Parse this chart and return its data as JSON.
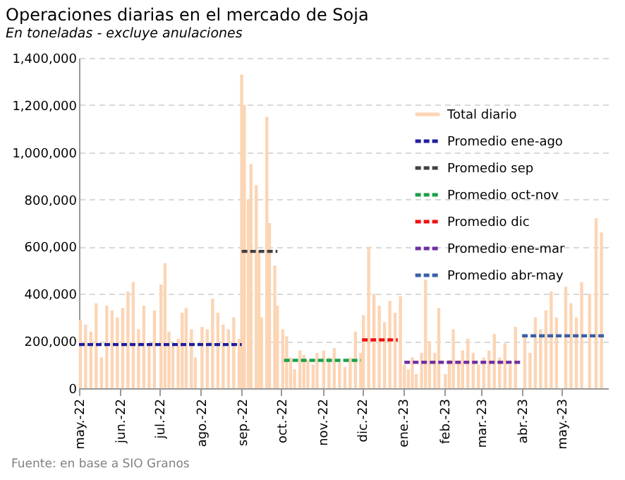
{
  "chart_data": {
    "type": "bar",
    "title": "Operaciones diarias en el mercado de Soja",
    "subtitle": "En toneladas - excluye anulaciones",
    "annotations": [
      "Fuente: en base a SIO Granos"
    ],
    "xlim": [
      "2022-05-01",
      "2023-06-05"
    ],
    "xticks": [
      {
        "value": "2022-05-01",
        "label": "may.-22"
      },
      {
        "value": "2022-06-01",
        "label": "jun.-22"
      },
      {
        "value": "2022-07-01",
        "label": "jul.-22"
      },
      {
        "value": "2022-08-01",
        "label": "ago.-22"
      },
      {
        "value": "2022-09-01",
        "label": "sep.-22"
      },
      {
        "value": "2022-10-01",
        "label": "oct.-22"
      },
      {
        "value": "2022-11-01",
        "label": "nov.-22"
      },
      {
        "value": "2022-12-01",
        "label": "dic.-22"
      },
      {
        "value": "2023-01-01",
        "label": "ene.-23"
      },
      {
        "value": "2023-02-01",
        "label": "feb.-23"
      },
      {
        "value": "2023-03-01",
        "label": "mar.-23"
      },
      {
        "value": "2023-04-01",
        "label": "abr.-23"
      },
      {
        "value": "2023-05-01",
        "label": "may.-23"
      }
    ],
    "ylim": [
      0,
      1400000
    ],
    "yticks": [
      {
        "value": 0,
        "label": "0"
      },
      {
        "value": 200000,
        "label": "200,000"
      },
      {
        "value": 400000,
        "label": "400,000"
      },
      {
        "value": 600000,
        "label": "600,000"
      },
      {
        "value": 800000,
        "label": "800,000"
      },
      {
        "value": 1000000,
        "label": "1,000,000"
      },
      {
        "value": 1200000,
        "label": "1,200,000"
      },
      {
        "value": 1400000,
        "label": "1,400,000"
      }
    ],
    "grid": "y",
    "legend": "top right",
    "series": [
      {
        "name": "Total diario",
        "color": "#fcd5b5",
        "x": [
          "2022-05-02",
          "2022-05-06",
          "2022-05-10",
          "2022-05-14",
          "2022-05-18",
          "2022-05-22",
          "2022-05-26",
          "2022-05-30",
          "2022-06-03",
          "2022-06-07",
          "2022-06-11",
          "2022-06-15",
          "2022-06-19",
          "2022-06-23",
          "2022-06-27",
          "2022-07-02",
          "2022-07-05",
          "2022-07-08",
          "2022-07-11",
          "2022-07-15",
          "2022-07-18",
          "2022-07-21",
          "2022-07-25",
          "2022-07-28",
          "2022-08-02",
          "2022-08-06",
          "2022-08-10",
          "2022-08-14",
          "2022-08-18",
          "2022-08-22",
          "2022-08-26",
          "2022-08-30",
          "2022-09-01",
          "2022-09-03",
          "2022-09-06",
          "2022-09-08",
          "2022-09-12",
          "2022-09-14",
          "2022-09-16",
          "2022-09-20",
          "2022-09-22",
          "2022-09-26",
          "2022-09-28",
          "2022-10-02",
          "2022-10-05",
          "2022-10-08",
          "2022-10-11",
          "2022-10-15",
          "2022-10-18",
          "2022-10-21",
          "2022-10-25",
          "2022-10-28",
          "2022-11-02",
          "2022-11-06",
          "2022-11-10",
          "2022-11-14",
          "2022-11-18",
          "2022-11-22",
          "2022-11-26",
          "2022-11-30",
          "2022-12-02",
          "2022-12-06",
          "2022-12-10",
          "2022-12-14",
          "2022-12-18",
          "2022-12-22",
          "2022-12-26",
          "2022-12-30",
          "2023-01-02",
          "2023-01-05",
          "2023-01-08",
          "2023-01-11",
          "2023-01-15",
          "2023-01-18",
          "2023-01-21",
          "2023-01-25",
          "2023-01-28",
          "2023-02-02",
          "2023-02-05",
          "2023-02-08",
          "2023-02-12",
          "2023-02-15",
          "2023-02-19",
          "2023-02-23",
          "2023-02-27",
          "2023-03-03",
          "2023-03-07",
          "2023-03-11",
          "2023-03-15",
          "2023-03-19",
          "2023-03-23",
          "2023-03-27",
          "2023-04-03",
          "2023-04-07",
          "2023-04-11",
          "2023-04-15",
          "2023-04-19",
          "2023-04-23",
          "2023-04-27",
          "2023-05-04",
          "2023-05-08",
          "2023-05-12",
          "2023-05-16",
          "2023-05-22",
          "2023-05-27",
          "2023-05-31"
        ],
        "values": [
          290000,
          270000,
          240000,
          360000,
          130000,
          350000,
          330000,
          300000,
          340000,
          410000,
          450000,
          250000,
          350000,
          190000,
          330000,
          440000,
          530000,
          240000,
          180000,
          210000,
          320000,
          340000,
          250000,
          130000,
          260000,
          250000,
          380000,
          320000,
          270000,
          250000,
          300000,
          210000,
          1330000,
          1200000,
          800000,
          950000,
          860000,
          580000,
          300000,
          1150000,
          700000,
          520000,
          350000,
          250000,
          220000,
          130000,
          80000,
          160000,
          140000,
          120000,
          100000,
          150000,
          160000,
          130000,
          170000,
          110000,
          90000,
          130000,
          240000,
          150000,
          310000,
          600000,
          400000,
          350000,
          280000,
          370000,
          320000,
          390000,
          100000,
          80000,
          130000,
          60000,
          150000,
          460000,
          200000,
          150000,
          340000,
          60000,
          120000,
          250000,
          110000,
          160000,
          210000,
          150000,
          100000,
          130000,
          160000,
          230000,
          130000,
          190000,
          100000,
          260000,
          230000,
          150000,
          300000,
          250000,
          330000,
          410000,
          300000,
          430000,
          360000,
          300000,
          450000,
          400000,
          720000,
          660000
        ]
      },
      {
        "name": "Promedio ene-ago",
        "type": "line",
        "line_style": "dashed",
        "color": "#1f1f9e",
        "x": [
          "2022-05-01",
          "2022-09-01"
        ],
        "values": [
          185000,
          185000
        ]
      },
      {
        "name": "Promedio sep",
        "type": "line",
        "line_style": "dashed",
        "color": "#404040",
        "x": [
          "2022-09-01",
          "2022-09-28"
        ],
        "values": [
          580000,
          580000
        ]
      },
      {
        "name": "Promedio oct-nov",
        "type": "line",
        "line_style": "dashed",
        "color": "#1aa04a",
        "x": [
          "2022-10-03",
          "2022-11-30"
        ],
        "values": [
          118000,
          118000
        ]
      },
      {
        "name": "Promedio dic",
        "type": "line",
        "line_style": "dashed",
        "color": "#ee1111",
        "x": [
          "2022-12-01",
          "2022-12-28"
        ],
        "values": [
          205000,
          205000
        ]
      },
      {
        "name": "Promedio ene-mar",
        "type": "line",
        "line_style": "dashed",
        "color": "#7030a0",
        "x": [
          "2023-01-02",
          "2023-03-31"
        ],
        "values": [
          110000,
          110000
        ]
      },
      {
        "name": "Promedio abr-may",
        "type": "line",
        "line_style": "dashed",
        "color": "#3a5fa8",
        "x": [
          "2023-04-01",
          "2023-06-02"
        ],
        "values": [
          222000,
          222000
        ]
      }
    ]
  }
}
